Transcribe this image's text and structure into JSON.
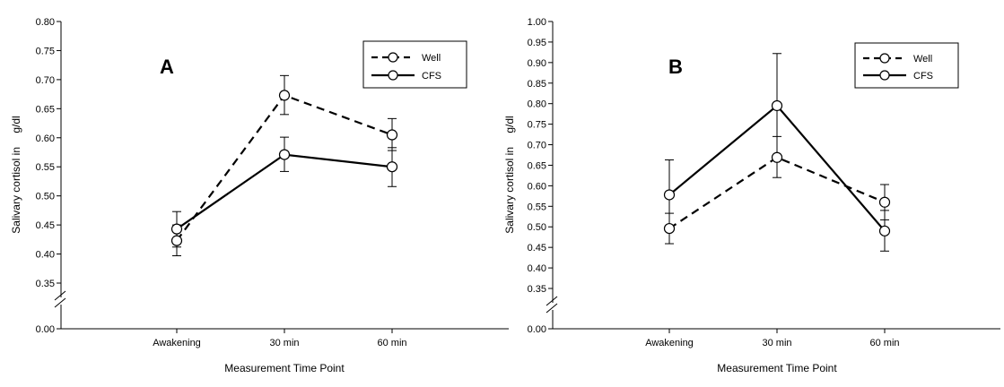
{
  "chart_data": [
    {
      "type": "line",
      "title": "A",
      "xlabel": "Measurement Time Point",
      "ylabel": "Salivary cortisol in",
      "ylabel_unit": "g/dl",
      "categories": [
        "Awakening",
        "30 min",
        "60 min"
      ],
      "ylim": [
        0.35,
        0.8
      ],
      "y_ticks": [
        "0.35",
        "0.40",
        "0.45",
        "0.50",
        "0.55",
        "0.60",
        "0.65",
        "0.70",
        "0.75",
        "0.80"
      ],
      "y_ticks_values": [
        0.35,
        0.4,
        0.45,
        0.5,
        0.55,
        0.6,
        0.65,
        0.7,
        0.75,
        0.8
      ],
      "y_break_label": "0.00",
      "legend_position": "top-right",
      "series": [
        {
          "name": "Well",
          "style": "dashed",
          "values": [
            0.423,
            0.673,
            0.605
          ],
          "err_low": [
            0.397,
            0.64,
            0.578
          ],
          "err_high": [
            0.45,
            0.707,
            0.633
          ]
        },
        {
          "name": "CFS",
          "style": "solid",
          "values": [
            0.443,
            0.571,
            0.55
          ],
          "err_low": [
            0.412,
            0.542,
            0.516
          ],
          "err_high": [
            0.473,
            0.601,
            0.583
          ]
        }
      ]
    },
    {
      "type": "line",
      "title": "B",
      "xlabel": "Measurement Time Point",
      "ylabel": "Salivary cortisol in",
      "ylabel_unit": "g/dl",
      "categories": [
        "Awakening",
        "30 min",
        "60 min"
      ],
      "ylim": [
        0.35,
        1.0
      ],
      "y_ticks": [
        "0.35",
        "0.40",
        "0.45",
        "0.50",
        "0.55",
        "0.60",
        "0.65",
        "0.70",
        "0.75",
        "0.80",
        "0.85",
        "0.90",
        "0.95",
        "1.00"
      ],
      "y_ticks_values": [
        0.35,
        0.4,
        0.45,
        0.5,
        0.55,
        0.6,
        0.65,
        0.7,
        0.75,
        0.8,
        0.85,
        0.9,
        0.95,
        1.0
      ],
      "y_break_label": "0.00",
      "legend_position": "top-right",
      "series": [
        {
          "name": "Well",
          "style": "dashed",
          "values": [
            0.496,
            0.669,
            0.56
          ],
          "err_low": [
            0.459,
            0.62,
            0.517
          ],
          "err_high": [
            0.533,
            0.72,
            0.603
          ]
        },
        {
          "name": "CFS",
          "style": "solid",
          "values": [
            0.578,
            0.795,
            0.49
          ],
          "err_low": [
            0.493,
            0.668,
            0.441
          ],
          "err_high": [
            0.663,
            0.922,
            0.54
          ]
        }
      ]
    }
  ]
}
